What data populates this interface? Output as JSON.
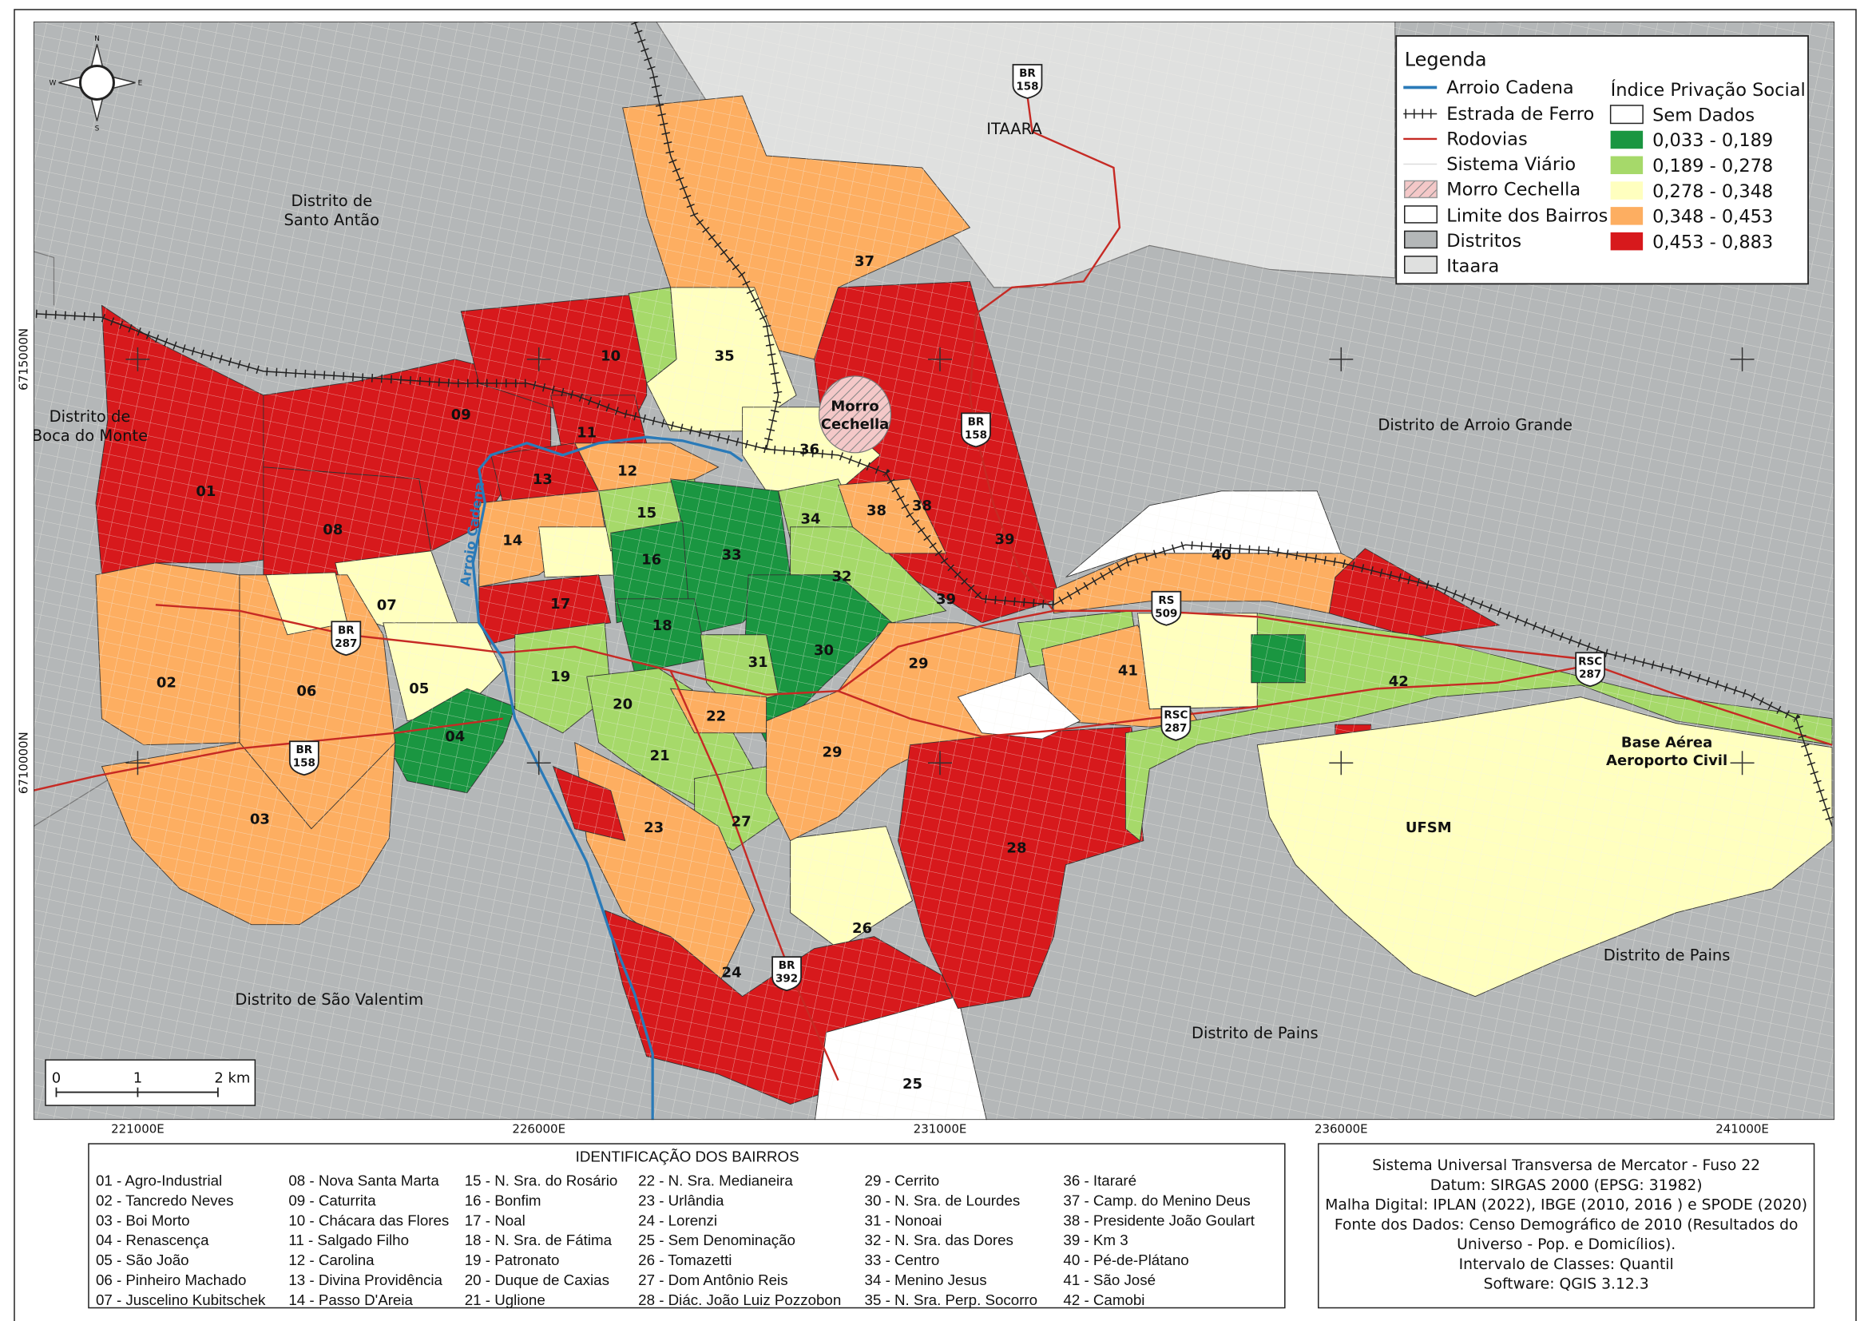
{
  "legend": {
    "title": "Legenda",
    "items": [
      {
        "label": "Arroio Cadena",
        "symbol": "blue-line",
        "color": "#2a7ab8"
      },
      {
        "label": "Estrada de Ferro",
        "symbol": "railroad-line"
      },
      {
        "label": "Rodovias",
        "symbol": "red-line",
        "color": "#c62a24"
      },
      {
        "label": "Sistema Viário",
        "symbol": "thin-gray-line"
      },
      {
        "label": "Morro Cechella",
        "symbol": "hatched-box"
      },
      {
        "label": "Limite dos Bairros",
        "symbol": "white-box"
      },
      {
        "label": "Distritos",
        "symbol": "gray-box",
        "color": "#b4b7b8"
      },
      {
        "label": "Itaara",
        "symbol": "light-gray-box",
        "color": "#dfe0df"
      }
    ],
    "index_title": "Índice Privação Social",
    "classes": [
      {
        "label": "Sem Dados",
        "color": "#ffffff"
      },
      {
        "label": "0,033 - 0,189",
        "color": "#1a9641"
      },
      {
        "label": "0,189 - 0,278",
        "color": "#a6d96a"
      },
      {
        "label": "0,278 - 0,348",
        "color": "#ffffbf"
      },
      {
        "label": "0,348 - 0,453",
        "color": "#fdae61"
      },
      {
        "label": "0,453 - 0,883",
        "color": "#d7191c"
      }
    ]
  },
  "neighborhoods_title": "IDENTIFICAÇÃO DOS BAIRROS",
  "neighborhoods": [
    {
      "id": "01",
      "name": "Agro-Industrial"
    },
    {
      "id": "02",
      "name": "Tancredo Neves"
    },
    {
      "id": "03",
      "name": "Boi Morto"
    },
    {
      "id": "04",
      "name": "Renascença"
    },
    {
      "id": "05",
      "name": "São João"
    },
    {
      "id": "06",
      "name": "Pinheiro Machado"
    },
    {
      "id": "07",
      "name": "Juscelino Kubitschek"
    },
    {
      "id": "08",
      "name": "Nova Santa Marta"
    },
    {
      "id": "09",
      "name": "Caturrita"
    },
    {
      "id": "10",
      "name": "Chácara das Flores"
    },
    {
      "id": "11",
      "name": "Salgado Filho"
    },
    {
      "id": "12",
      "name": "Carolina"
    },
    {
      "id": "13",
      "name": "Divina Providência"
    },
    {
      "id": "14",
      "name": "Passo D'Areia"
    },
    {
      "id": "15",
      "name": "N. Sra. do Rosário"
    },
    {
      "id": "16",
      "name": "Bonfim"
    },
    {
      "id": "17",
      "name": "Noal"
    },
    {
      "id": "18",
      "name": "N. Sra. de Fátima"
    },
    {
      "id": "19",
      "name": "Patronato"
    },
    {
      "id": "20",
      "name": "Duque de Caxias"
    },
    {
      "id": "21",
      "name": "Uglione"
    },
    {
      "id": "22",
      "name": "N. Sra. Medianeira"
    },
    {
      "id": "23",
      "name": "Urlândia"
    },
    {
      "id": "24",
      "name": "Lorenzi"
    },
    {
      "id": "25",
      "name": "Sem Denominação"
    },
    {
      "id": "26",
      "name": "Tomazetti"
    },
    {
      "id": "27",
      "name": "Dom Antônio Reis"
    },
    {
      "id": "28",
      "name": "Diác. João Luiz Pozzobon"
    },
    {
      "id": "29",
      "name": "Cerrito"
    },
    {
      "id": "30",
      "name": "N. Sra. de Lourdes"
    },
    {
      "id": "31",
      "name": "Nonoai"
    },
    {
      "id": "32",
      "name": "N. Sra. das Dores"
    },
    {
      "id": "33",
      "name": "Centro"
    },
    {
      "id": "34",
      "name": "Menino Jesus"
    },
    {
      "id": "35",
      "name": "N. Sra. Perp. Socorro"
    },
    {
      "id": "36",
      "name": "Itararé"
    },
    {
      "id": "37",
      "name": "Camp. do Menino Deus"
    },
    {
      "id": "38",
      "name": "Presidente João Goulart"
    },
    {
      "id": "39",
      "name": "Km 3"
    },
    {
      "id": "40",
      "name": "Pé-de-Plátano"
    },
    {
      "id": "41",
      "name": "São José"
    },
    {
      "id": "42",
      "name": "Camobi"
    }
  ],
  "places": {
    "santo_antao": [
      "Distrito de",
      "Santo Antão"
    ],
    "boca_do_monte": [
      "Distrito de",
      "Boca do Monte"
    ],
    "itaara": "ITAARA",
    "arroio_grande": "Distrito de Arroio Grande",
    "sao_valentim": "Distrito de São Valentim",
    "pains_1": "Distrito de Pains",
    "pains_2": "Distrito de Pains",
    "base_aerea": [
      "Base Aérea",
      "Aeroporto Civil"
    ],
    "ufsm": "UFSM",
    "morro": [
      "Morro",
      "Cechella"
    ],
    "river": "Arroio Cadena"
  },
  "shields": [
    {
      "type": "BR",
      "num": "158"
    },
    {
      "type": "BR",
      "num": "158"
    },
    {
      "type": "BR",
      "num": "287"
    },
    {
      "type": "BR",
      "num": "158"
    },
    {
      "type": "BR",
      "num": "392"
    },
    {
      "type": "RS",
      "num": "509"
    },
    {
      "type": "RSC",
      "num": "287"
    },
    {
      "type": "RSC",
      "num": "287"
    }
  ],
  "coordinates": {
    "easting": [
      "221000E",
      "226000E",
      "231000E",
      "236000E",
      "241000E"
    ],
    "northing": [
      "6715000N",
      "6710000N"
    ]
  },
  "scale_bar": {
    "labels": [
      "0",
      "1",
      "2 km"
    ]
  },
  "north_arrow": {
    "n": "N",
    "s": "S",
    "e": "E",
    "w": "W"
  },
  "info_lines": [
    "Sistema Universal Transversa de Mercator - Fuso 22",
    "Datum: SIRGAS 2000 (EPSG: 31982)",
    "Malha Digital: IPLAN (2022), IBGE (2010, 2016 ) e SPODE (2020)",
    "Fonte dos Dados: Censo Demográfico de 2010 (Resultados do",
    "Universo - Pop. e Domicílios).",
    "Intervalo de Classes: Quantil",
    "Software: QGIS 3.12.3"
  ]
}
